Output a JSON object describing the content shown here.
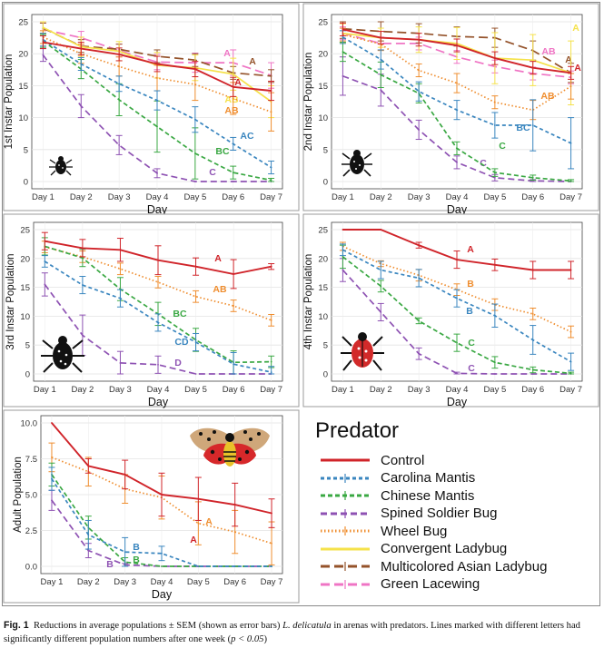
{
  "colors": {
    "Control": "#d0242a",
    "Carolina Mantis": "#3a86bf",
    "Chinese Mantis": "#3aa843",
    "Spined Soldier Bug": "#8e52b3",
    "Wheel Bug": "#ef8d2e",
    "Convergent Ladybug": "#f5e24a",
    "Multicolored Asian Ladybug": "#94522a",
    "Green Lacewing": "#ef74c4"
  },
  "legend": {
    "title": "Predator",
    "items": [
      {
        "name": "Control",
        "style": "solid"
      },
      {
        "name": "Carolina Mantis",
        "style": "dashed"
      },
      {
        "name": "Chinese Mantis",
        "style": "dashed"
      },
      {
        "name": "Spined Soldier Bug",
        "style": "dashed"
      },
      {
        "name": "Wheel Bug",
        "style": "dotted"
      },
      {
        "name": "Convergent Ladybug",
        "style": "solid"
      },
      {
        "name": "Multicolored Asian Ladybug",
        "style": "longdash"
      },
      {
        "name": "Green Lacewing",
        "style": "longdash"
      }
    ]
  },
  "caption": {
    "label": "Fig. 1",
    "text_before_species": "Reductions in average populations ± SEM (shown as error bars)",
    "species": "L. delicatula",
    "text_after_species": "in arenas with predators. Lines marked with different letters had significantly different population numbers after one week (",
    "p_value": "p < 0.05",
    "closing": ")"
  },
  "chart_data": [
    {
      "type": "line",
      "ylabel": "1st Instar Population",
      "xlabel": "Day",
      "x": [
        "Day 1",
        "Day 2",
        "Day 3",
        "Day 4",
        "Day 5",
        "Day 6",
        "Day 7"
      ],
      "ylim": [
        0,
        25
      ],
      "yticks": [
        0,
        5,
        10,
        15,
        20,
        25
      ],
      "series": [
        {
          "name": "Control",
          "values": [
            21.8,
            20.8,
            19.9,
            18.4,
            17.6,
            14.8,
            14.2
          ],
          "err": [
            1,
            1,
            1,
            1.2,
            1.2,
            1.5,
            1.5
          ],
          "letter": "A"
        },
        {
          "name": "Carolina Mantis",
          "values": [
            22.2,
            18.4,
            15.3,
            12.7,
            9.7,
            5.9,
            2.2
          ],
          "err": [
            1,
            1,
            1.2,
            1.5,
            2,
            1,
            1
          ],
          "letter": "AC"
        },
        {
          "name": "Chinese Mantis",
          "values": [
            22.0,
            17.6,
            12.8,
            8.6,
            4.4,
            1.4,
            0.2
          ],
          "err": [
            1,
            1.5,
            2.5,
            4,
            4,
            1,
            0.3
          ],
          "letter": "BC"
        },
        {
          "name": "Spined Soldier Bug",
          "values": [
            19.8,
            11.8,
            5.7,
            1.3,
            0,
            0,
            0
          ],
          "err": [
            1,
            1.8,
            1.5,
            0.7,
            0,
            0,
            0
          ],
          "letter": "C"
        },
        {
          "name": "Wheel Bug",
          "values": [
            22.6,
            20.0,
            18.0,
            16.2,
            15.2,
            13.0,
            10.9
          ],
          "err": [
            1,
            1.5,
            1.5,
            2,
            2.5,
            2.5,
            3
          ],
          "letter": "AB"
        },
        {
          "name": "Convergent Ladybug",
          "values": [
            24.1,
            21.1,
            20.4,
            18.2,
            17.8,
            16.8,
            12.5
          ],
          "err": [
            1,
            1.5,
            1.5,
            2,
            2,
            2.5,
            2.5
          ],
          "letter": "AB"
        },
        {
          "name": "Multicolored Asian Ladybug",
          "values": [
            24.0,
            21.2,
            20.7,
            19.6,
            19.0,
            17.0,
            16.5
          ],
          "err": [
            0.8,
            1,
            0.8,
            1,
            1,
            1,
            1
          ],
          "letter": "A"
        },
        {
          "name": "Green Lacewing",
          "values": [
            23.8,
            22.5,
            20.5,
            18.7,
            18.6,
            18.6,
            16.6
          ],
          "err": [
            1,
            1,
            1,
            1.2,
            1.5,
            2,
            2
          ],
          "letter": "A"
        }
      ]
    },
    {
      "type": "line",
      "ylabel": "2nd Instar Population",
      "xlabel": "Day",
      "x": [
        "Day 1",
        "Day 2",
        "Day 3",
        "Day 4",
        "Day 5",
        "Day 6",
        "Day 7"
      ],
      "ylim": [
        0,
        25
      ],
      "yticks": [
        0,
        5,
        10,
        15,
        20,
        25
      ],
      "series": [
        {
          "name": "Control",
          "values": [
            23.8,
            22.5,
            22.2,
            21.3,
            19.3,
            17.8,
            17.0
          ],
          "err": [
            1,
            1,
            1,
            1,
            1,
            1,
            1
          ],
          "letter": "A"
        },
        {
          "name": "Carolina Mantis",
          "values": [
            22.6,
            19.1,
            14.1,
            11.2,
            8.8,
            8.8,
            6.0
          ],
          "err": [
            1,
            1.5,
            1.5,
            1.5,
            2,
            4,
            4
          ],
          "letter": "BC"
        },
        {
          "name": "Chinese Mantis",
          "values": [
            20.3,
            16.7,
            13.8,
            5.2,
            1.4,
            0.6,
            0.1
          ],
          "err": [
            1.5,
            2,
            1.5,
            1,
            0.6,
            0.4,
            0.2
          ],
          "letter": "C"
        },
        {
          "name": "Spined Soldier Bug",
          "values": [
            16.5,
            14.3,
            8.1,
            3.0,
            0.6,
            0.1,
            0
          ],
          "err": [
            3,
            2.5,
            1.5,
            1,
            0.5,
            0.2,
            0
          ],
          "letter": "C"
        },
        {
          "name": "Wheel Bug",
          "values": [
            23.0,
            21.5,
            17.4,
            15.4,
            12.4,
            11.2,
            14.9
          ],
          "err": [
            1,
            1,
            1,
            1.5,
            1,
            1.5,
            2
          ],
          "letter": "AB"
        },
        {
          "name": "Convergent Ladybug",
          "values": [
            23.2,
            22.5,
            22.2,
            21.6,
            19.3,
            19.0,
            17.0
          ],
          "err": [
            1.5,
            1.5,
            2,
            2.5,
            4,
            4,
            5
          ],
          "letter": "A"
        },
        {
          "name": "Multicolored Asian Ladybug",
          "values": [
            23.9,
            23.5,
            23.2,
            22.7,
            22.5,
            20.5,
            17.0
          ],
          "err": [
            1.5,
            1.5,
            1.5,
            1.5,
            1.5,
            1.5,
            1.5
          ],
          "letter": "A"
        },
        {
          "name": "Green Lacewing",
          "values": [
            23.2,
            21.6,
            21.6,
            19.5,
            18.0,
            16.9,
            16.3
          ],
          "err": [
            1,
            1,
            1,
            1,
            1,
            1,
            1
          ],
          "letter": "AB"
        }
      ]
    },
    {
      "type": "line",
      "ylabel": "3rd Instar Population",
      "xlabel": "Day",
      "x": [
        "Day 1",
        "Day 2",
        "Day 3",
        "Day 4",
        "Day 5",
        "Day 6",
        "Day 7"
      ],
      "ylim": [
        0,
        25
      ],
      "yticks": [
        0,
        5,
        10,
        15,
        20,
        25
      ],
      "series": [
        {
          "name": "Control",
          "values": [
            23.0,
            21.8,
            21.5,
            19.7,
            18.6,
            17.3,
            18.6
          ],
          "err": [
            1.5,
            1.5,
            2,
            2.5,
            1.5,
            2.5,
            0.5
          ],
          "letter": "A"
        },
        {
          "name": "Carolina Mantis",
          "values": [
            19.5,
            15.4,
            13.1,
            8.9,
            5.5,
            1.7,
            0.3
          ],
          "err": [
            1,
            1.5,
            1.5,
            1.5,
            1.5,
            2,
            1
          ],
          "letter": "CD"
        },
        {
          "name": "Chinese Mantis",
          "values": [
            22.1,
            20.1,
            14.7,
            10.4,
            5.9,
            2.0,
            2.1
          ],
          "err": [
            1.5,
            1.5,
            2,
            2,
            2,
            2,
            1
          ],
          "letter": "BC"
        },
        {
          "name": "Spined Soldier Bug",
          "values": [
            15.5,
            6.7,
            1.9,
            1.6,
            0,
            0,
            0
          ],
          "err": [
            2,
            3.5,
            2,
            1.5,
            0,
            0,
            0
          ],
          "letter": "D"
        },
        {
          "name": "Wheel Bug",
          "values": [
            22.0,
            20.3,
            18.2,
            15.9,
            13.4,
            11.8,
            9.3
          ],
          "err": [
            1,
            1,
            1,
            1,
            1,
            1,
            1
          ],
          "letter": "AB"
        }
      ]
    },
    {
      "type": "line",
      "ylabel": "4th Instar Population",
      "xlabel": "Day",
      "x": [
        "Day 1",
        "Day 2",
        "Day 3",
        "Day 4",
        "Day 5",
        "Day 6",
        "Day 7"
      ],
      "ylim": [
        0,
        25
      ],
      "yticks": [
        0,
        5,
        10,
        15,
        20,
        25
      ],
      "series": [
        {
          "name": "Control",
          "values": [
            25.0,
            25.0,
            22.3,
            19.8,
            18.9,
            18.0,
            18.0
          ],
          "err": [
            0,
            0,
            0.5,
            1.5,
            1,
            1.5,
            1.5
          ],
          "letter": "A"
        },
        {
          "name": "Carolina Mantis",
          "values": [
            21.5,
            18.0,
            16.6,
            13.1,
            10.1,
            5.9,
            2.1
          ],
          "err": [
            1,
            1.5,
            1.5,
            1.5,
            2,
            2.5,
            1.5
          ],
          "letter": "B"
        },
        {
          "name": "Chinese Mantis",
          "values": [
            20.3,
            15.2,
            9.2,
            5.4,
            2.0,
            0.7,
            0.1
          ],
          "err": [
            2,
            1,
            0.5,
            1.5,
            1,
            0.5,
            0.2
          ],
          "letter": "C"
        },
        {
          "name": "Spined Soldier Bug",
          "values": [
            18.0,
            10.7,
            3.5,
            0.1,
            0,
            0,
            0
          ],
          "err": [
            2,
            1.5,
            1,
            0.2,
            0,
            0,
            0
          ],
          "letter": "C"
        },
        {
          "name": "Wheel Bug",
          "values": [
            22.1,
            19.1,
            17.1,
            14.6,
            12.0,
            10.4,
            7.3
          ],
          "err": [
            0.7,
            0.5,
            1,
            1,
            1,
            1,
            1
          ],
          "letter": "B"
        }
      ]
    },
    {
      "type": "line",
      "ylabel": "Adult Population",
      "xlabel": "Day",
      "x": [
        "Day 1",
        "Day 2",
        "Day 3",
        "Day 4",
        "Day 5",
        "Day 6",
        "Day 7"
      ],
      "ylim": [
        0,
        10
      ],
      "yticks": [
        0.0,
        2.5,
        5.0,
        7.5,
        10.0
      ],
      "series": [
        {
          "name": "Control",
          "values": [
            10.0,
            7.0,
            6.4,
            5.0,
            4.7,
            4.3,
            3.7
          ],
          "err": [
            0,
            0.5,
            1,
            1.5,
            1.5,
            1.5,
            1
          ],
          "letter": "A"
        },
        {
          "name": "Carolina Mantis",
          "values": [
            6.1,
            2.2,
            1.0,
            0.9,
            0,
            0,
            0
          ],
          "err": [
            0.8,
            1,
            1,
            0.5,
            0,
            0,
            0
          ],
          "letter": "B"
        },
        {
          "name": "Chinese Mantis",
          "values": [
            6.4,
            2.7,
            0.3,
            0,
            0,
            0,
            0
          ],
          "err": [
            0.8,
            0.8,
            0.3,
            0,
            0,
            0,
            0
          ],
          "letter": "B"
        },
        {
          "name": "Spined Soldier Bug",
          "values": [
            4.6,
            1.1,
            0.1,
            0,
            0,
            0,
            0
          ],
          "err": [
            0.7,
            0.5,
            0.1,
            0,
            0,
            0,
            0
          ],
          "letter": "B"
        },
        {
          "name": "Wheel Bug",
          "values": [
            7.6,
            6.6,
            5.4,
            4.8,
            3.0,
            2.4,
            1.6
          ],
          "err": [
            1,
            1,
            1,
            1.5,
            1.5,
            1.5,
            1.5
          ],
          "letter": "A"
        }
      ]
    }
  ]
}
